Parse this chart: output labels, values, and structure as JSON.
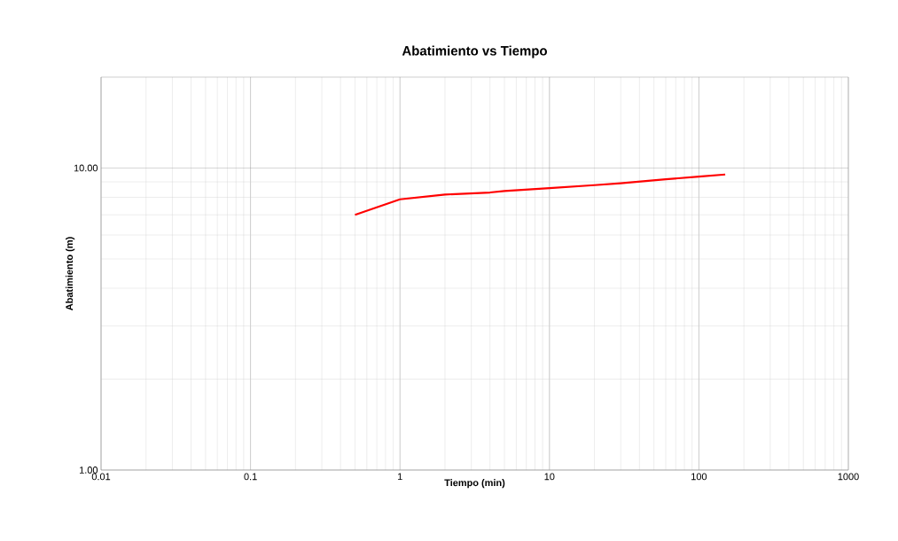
{
  "chart_data": {
    "type": "line",
    "title": "Abatimiento vs Tiempo",
    "xlabel": "Tiempo (min)",
    "ylabel": "Abatimiento (m)",
    "log": "xy",
    "grid": true,
    "marker": "none",
    "line_style": "solid",
    "xlim": [
      0.01,
      1000
    ],
    "ylim": [
      1,
      20
    ],
    "xticks": [
      0.01,
      0.1,
      1,
      10,
      100,
      1000
    ],
    "yticks": [
      {
        "value": 1,
        "label": "1.00"
      },
      {
        "value": 10,
        "label": "10.00"
      }
    ],
    "x": [
      0.5,
      1,
      2,
      4,
      5,
      10,
      20,
      30,
      60,
      100,
      150
    ],
    "series": [
      {
        "color": "#ff0000",
        "values": [
          7.0,
          7.88,
          8.17,
          8.3,
          8.39,
          8.58,
          8.78,
          8.91,
          9.18,
          9.37,
          9.52
        ]
      }
    ]
  }
}
